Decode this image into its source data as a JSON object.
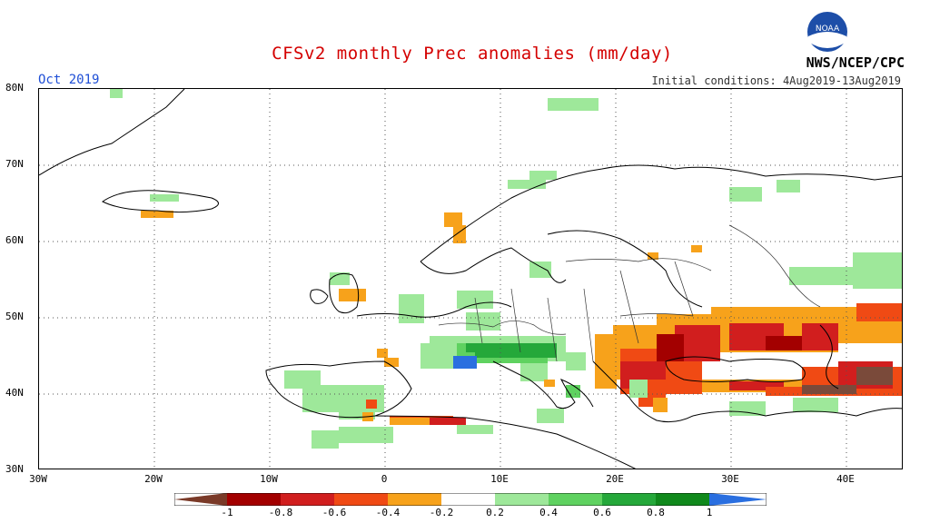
{
  "header": {
    "title": "CFSv2 monthly Prec anomalies (mm/day)",
    "month": "Oct 2019",
    "initial_conditions": "Initial conditions: 4Aug2019-13Aug2019",
    "agency": "NWS/NCEP/CPC",
    "logo_text": "NOAA"
  },
  "axes": {
    "lat_labels": [
      "80N",
      "70N",
      "60N",
      "50N",
      "40N",
      "30N"
    ],
    "lon_labels": [
      "30W",
      "20W",
      "10W",
      "0",
      "10E",
      "20E",
      "30E",
      "40E"
    ]
  },
  "legend": {
    "labels": [
      "-1",
      "-0.8",
      "-0.6",
      "-0.4",
      "-0.2",
      "0.2",
      "0.4",
      "0.6",
      "0.8",
      "1"
    ],
    "colors": [
      "#7a3a28",
      "#a30000",
      "#d11e1e",
      "#f04a14",
      "#f7a21b",
      "#ffffff",
      "#9ee89a",
      "#5fd260",
      "#25a83a",
      "#10891c",
      "#2a6fe0"
    ]
  },
  "anomaly_colors": {
    "lightgreen": "#9ee89a",
    "green": "#5fd260",
    "darkgreen": "#25a83a",
    "orange": "#f7a21b",
    "redorange": "#f04a14",
    "red": "#d11e1e",
    "darkred": "#a30000",
    "brown": "#7a4a3a",
    "blue": "#2a6fe0"
  }
}
